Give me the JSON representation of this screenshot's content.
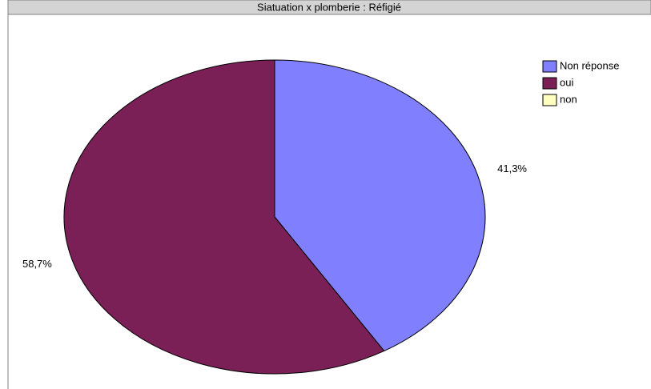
{
  "chart_data": {
    "type": "pie",
    "title": "Siatuation x plomberie : Réfigié",
    "categories": [
      "Non réponse",
      "oui",
      "non"
    ],
    "values": [
      41.3,
      58.7,
      0
    ],
    "value_labels": [
      "41,3%",
      "58,7%",
      null
    ],
    "colors": [
      "#8080ff",
      "#7b1f57",
      "#ffffc0"
    ],
    "legend": "top-right"
  }
}
